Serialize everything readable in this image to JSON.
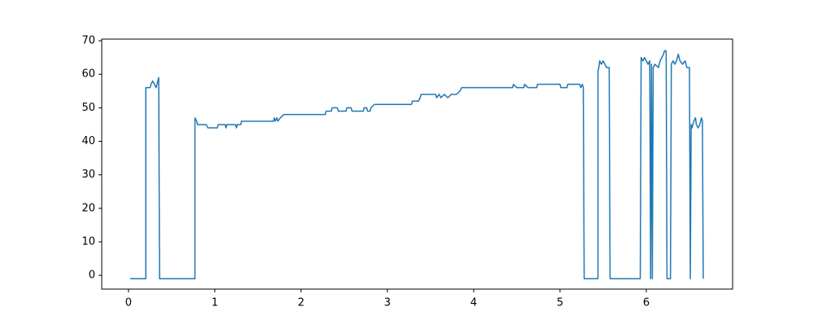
{
  "chart_data": {
    "type": "line",
    "x": [
      0.02,
      0.2,
      0.2,
      0.25,
      0.26,
      0.28,
      0.3,
      0.32,
      0.34,
      0.35,
      0.36,
      0.77,
      0.77,
      0.79,
      0.8,
      0.9,
      0.92,
      1.03,
      1.04,
      1.12,
      1.13,
      1.14,
      1.24,
      1.25,
      1.26,
      1.3,
      1.31,
      1.68,
      1.69,
      1.7,
      1.72,
      1.73,
      1.76,
      1.8,
      2.28,
      2.29,
      2.35,
      2.36,
      2.42,
      2.43,
      2.52,
      2.53,
      2.58,
      2.59,
      2.72,
      2.73,
      2.76,
      2.77,
      2.8,
      2.81,
      2.85,
      3.28,
      3.29,
      3.36,
      3.38,
      3.39,
      3.56,
      3.57,
      3.6,
      3.62,
      3.66,
      3.7,
      3.74,
      3.8,
      3.84,
      3.86,
      4.45,
      4.46,
      4.5,
      4.58,
      4.59,
      4.63,
      4.73,
      4.74,
      5.0,
      5.01,
      5.08,
      5.09,
      5.23,
      5.24,
      5.26,
      5.27,
      5.28,
      5.44,
      5.44,
      5.45,
      5.46,
      5.48,
      5.5,
      5.52,
      5.54,
      5.57,
      5.58,
      5.93,
      5.94,
      5.96,
      5.98,
      6.0,
      6.02,
      6.04,
      6.05,
      6.06,
      6.07,
      6.08,
      6.1,
      6.14,
      6.16,
      6.2,
      6.21,
      6.23,
      6.24,
      6.28,
      6.29,
      6.31,
      6.33,
      6.35,
      6.37,
      6.39,
      6.42,
      6.45,
      6.47,
      6.5,
      6.51,
      6.52,
      6.53,
      6.55,
      6.57,
      6.58,
      6.6,
      6.62,
      6.64,
      6.65,
      6.66
    ],
    "series": [
      {
        "color": "#1f77b4",
        "values": [
          -1,
          -1,
          56,
          56,
          57,
          58,
          57,
          56,
          58,
          59,
          -1,
          -1,
          47,
          46,
          45,
          45,
          44,
          44,
          45,
          45,
          44,
          45,
          45,
          44,
          45,
          45,
          46,
          46,
          47,
          46,
          47,
          46,
          47,
          48,
          48,
          49,
          49,
          50,
          50,
          49,
          49,
          50,
          50,
          49,
          49,
          50,
          50,
          49,
          49,
          50,
          51,
          51,
          52,
          52,
          53,
          54,
          54,
          53,
          54,
          53,
          54,
          53,
          54,
          54,
          55,
          56,
          56,
          57,
          56,
          56,
          57,
          56,
          56,
          57,
          57,
          56,
          56,
          57,
          57,
          56,
          57,
          56,
          -1,
          -1,
          61,
          62,
          64,
          63,
          64,
          63,
          62,
          62,
          -1,
          -1,
          65,
          64,
          65,
          64,
          63,
          64,
          -1,
          63,
          -1,
          62,
          63,
          62,
          64,
          66,
          67,
          67,
          -1,
          -1,
          63,
          64,
          63,
          64,
          66,
          64,
          63,
          64,
          62,
          62,
          -1,
          45,
          44,
          46,
          47,
          45,
          44,
          45,
          47,
          46,
          -1
        ]
      }
    ],
    "xlim": [
      -0.31,
      7.0
    ],
    "ylim": [
      -4.1,
      70.5
    ],
    "xticks": [
      0,
      1,
      2,
      3,
      4,
      5,
      6
    ],
    "yticks": [
      0,
      10,
      20,
      30,
      40,
      50,
      60,
      70
    ]
  }
}
